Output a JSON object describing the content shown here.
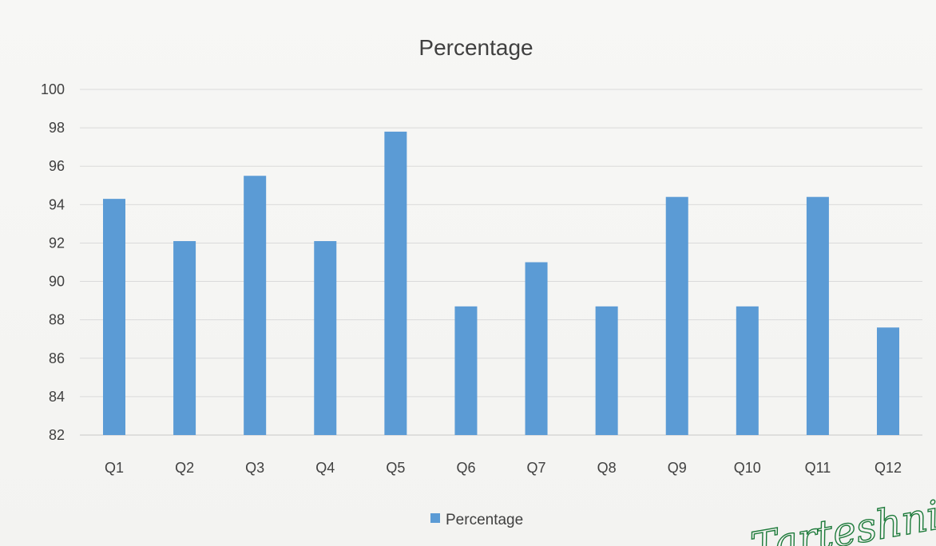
{
  "chart_data": {
    "type": "bar",
    "title": "Percentage",
    "categories": [
      "Q1",
      "Q2",
      "Q3",
      "Q4",
      "Q5",
      "Q6",
      "Q7",
      "Q8",
      "Q9",
      "Q10",
      "Q11",
      "Q12"
    ],
    "series": [
      {
        "name": "Percentage",
        "values": [
          94.3,
          92.1,
          95.5,
          92.1,
          97.8,
          88.7,
          91.0,
          88.7,
          94.4,
          88.7,
          94.4,
          87.6
        ],
        "color": "#5b9bd5"
      }
    ],
    "ylim": [
      82,
      100
    ],
    "yticks": [
      "82",
      "84",
      "86",
      "88",
      "90",
      "92",
      "94",
      "96",
      "98",
      "100"
    ],
    "grid": true,
    "legend_position": "bottom"
  },
  "signature": {
    "text": "Tarteshni",
    "color": "#1d7a3a"
  }
}
